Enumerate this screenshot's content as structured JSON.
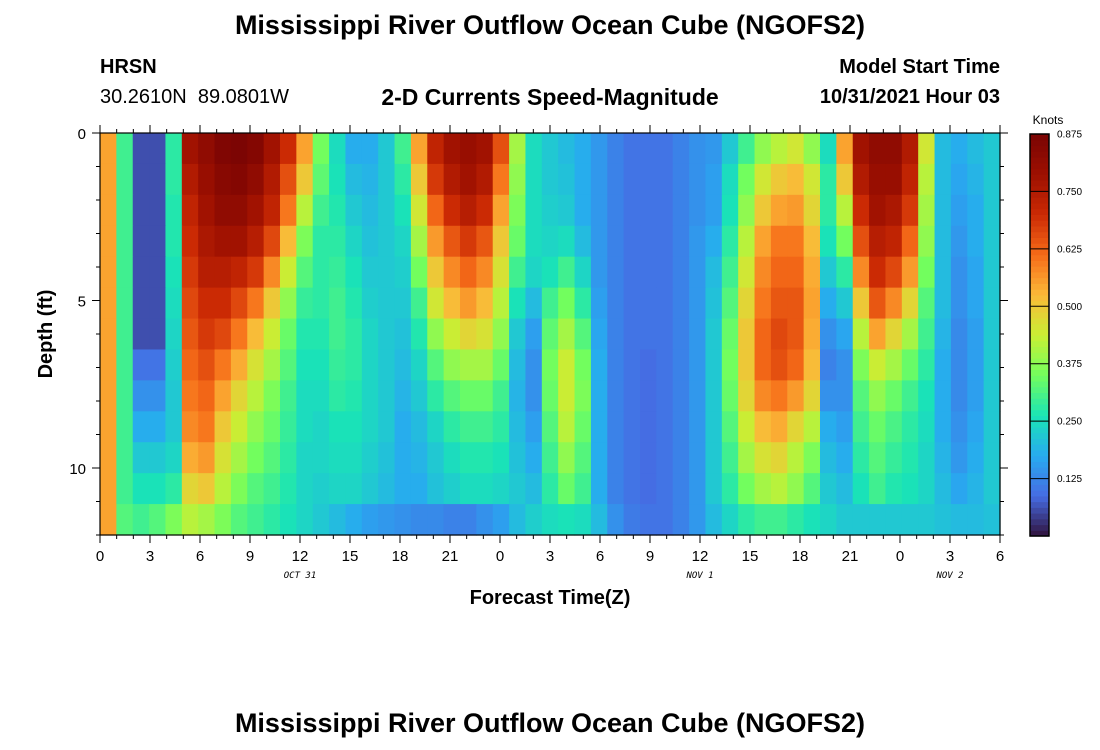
{
  "header": {
    "title": "Mississippi River Outflow Ocean Cube (NGOFS2)",
    "station_name": "HRSN",
    "coordinates": "30.2610N  89.0801W",
    "subtitle": "2-D Currents Speed-Magnitude",
    "model_start_label": "Model Start Time",
    "model_start_value": "10/31/2021 Hour 03"
  },
  "footer": {
    "title": "Mississippi River Outflow Ocean Cube (NGOFS2)"
  },
  "chart_data": {
    "type": "heatmap",
    "xlabel": "Forecast Time(Z)",
    "ylabel": "Depth (ft)",
    "x_tick_labels": [
      "0",
      "3",
      "6",
      "9",
      "12",
      "15",
      "18",
      "21",
      "0",
      "3",
      "6",
      "9",
      "12",
      "15",
      "18",
      "21",
      "0",
      "3",
      "6"
    ],
    "x_range_hours": [
      0,
      54
    ],
    "date_labels": [
      {
        "text": "OCT 31",
        "hour": 12
      },
      {
        "text": "NOV 1",
        "hour": 36
      },
      {
        "text": "NOV 2",
        "hour": 51
      }
    ],
    "y_tick_labels": [
      "0",
      "5",
      "10"
    ],
    "y_range_ft": [
      0,
      12
    ],
    "colorbar": {
      "title": "Knots",
      "min": 0,
      "max": 0.875,
      "tick_labels": [
        "0.875",
        "0.750",
        "0.625",
        "0.500",
        "0.375",
        "0.250",
        "0.125"
      ],
      "tick_values": [
        0.875,
        0.75,
        0.625,
        0.5,
        0.375,
        0.25,
        0.125
      ]
    },
    "column_hours": [
      0,
      1,
      2,
      3,
      4,
      5,
      6,
      7,
      8,
      9,
      10,
      11,
      12,
      13,
      14,
      15,
      16,
      17,
      18,
      19,
      20,
      21,
      22,
      23,
      24,
      25,
      26,
      27,
      28,
      29,
      30,
      31,
      32,
      33,
      34,
      35,
      36,
      37,
      38,
      39,
      40,
      41,
      42,
      43,
      44,
      45,
      46,
      47,
      48,
      49,
      50,
      51,
      52,
      53,
      54
    ],
    "layer_depths_ft": [
      0,
      1,
      2,
      3,
      4,
      5,
      6,
      7,
      8,
      9,
      10,
      11,
      12
    ],
    "speed_knots_by_depth": [
      [
        0.55,
        0.3,
        0.06,
        0.06,
        0.28,
        0.78,
        0.82,
        0.86,
        0.87,
        0.85,
        0.78,
        0.7,
        0.55,
        0.35,
        0.25,
        0.18,
        0.18,
        0.22,
        0.3,
        0.55,
        0.72,
        0.78,
        0.8,
        0.78,
        0.65,
        0.4,
        0.25,
        0.22,
        0.2,
        0.18,
        0.15,
        0.12,
        0.1,
        0.1,
        0.1,
        0.12,
        0.14,
        0.15,
        0.22,
        0.3,
        0.38,
        0.42,
        0.45,
        0.38,
        0.25,
        0.55,
        0.78,
        0.82,
        0.82,
        0.75,
        0.45,
        0.2,
        0.18,
        0.2,
        0.22
      ],
      [
        0.55,
        0.3,
        0.06,
        0.06,
        0.28,
        0.75,
        0.8,
        0.84,
        0.85,
        0.82,
        0.75,
        0.65,
        0.5,
        0.33,
        0.26,
        0.2,
        0.19,
        0.22,
        0.28,
        0.5,
        0.68,
        0.75,
        0.78,
        0.75,
        0.6,
        0.38,
        0.25,
        0.22,
        0.21,
        0.18,
        0.15,
        0.12,
        0.1,
        0.1,
        0.1,
        0.12,
        0.14,
        0.16,
        0.25,
        0.35,
        0.45,
        0.5,
        0.52,
        0.45,
        0.28,
        0.5,
        0.75,
        0.8,
        0.8,
        0.72,
        0.42,
        0.2,
        0.17,
        0.19,
        0.22
      ],
      [
        0.55,
        0.3,
        0.06,
        0.06,
        0.27,
        0.72,
        0.78,
        0.82,
        0.82,
        0.78,
        0.72,
        0.6,
        0.42,
        0.3,
        0.27,
        0.22,
        0.2,
        0.22,
        0.26,
        0.45,
        0.62,
        0.7,
        0.74,
        0.7,
        0.55,
        0.36,
        0.25,
        0.23,
        0.22,
        0.18,
        0.15,
        0.12,
        0.1,
        0.1,
        0.1,
        0.12,
        0.14,
        0.16,
        0.26,
        0.38,
        0.5,
        0.55,
        0.56,
        0.48,
        0.28,
        0.42,
        0.7,
        0.78,
        0.76,
        0.68,
        0.4,
        0.2,
        0.16,
        0.18,
        0.22
      ],
      [
        0.55,
        0.3,
        0.06,
        0.06,
        0.27,
        0.7,
        0.76,
        0.78,
        0.78,
        0.74,
        0.66,
        0.52,
        0.36,
        0.28,
        0.28,
        0.24,
        0.21,
        0.22,
        0.24,
        0.4,
        0.56,
        0.64,
        0.68,
        0.64,
        0.5,
        0.34,
        0.25,
        0.24,
        0.25,
        0.2,
        0.15,
        0.12,
        0.1,
        0.1,
        0.1,
        0.12,
        0.15,
        0.18,
        0.28,
        0.42,
        0.55,
        0.6,
        0.6,
        0.52,
        0.26,
        0.35,
        0.65,
        0.74,
        0.72,
        0.62,
        0.38,
        0.2,
        0.15,
        0.18,
        0.22
      ],
      [
        0.55,
        0.3,
        0.06,
        0.06,
        0.26,
        0.68,
        0.74,
        0.74,
        0.72,
        0.68,
        0.58,
        0.44,
        0.32,
        0.28,
        0.29,
        0.26,
        0.22,
        0.22,
        0.23,
        0.35,
        0.5,
        0.58,
        0.62,
        0.58,
        0.46,
        0.3,
        0.24,
        0.26,
        0.3,
        0.24,
        0.15,
        0.12,
        0.1,
        0.1,
        0.1,
        0.12,
        0.15,
        0.2,
        0.3,
        0.45,
        0.58,
        0.62,
        0.62,
        0.54,
        0.22,
        0.28,
        0.58,
        0.7,
        0.66,
        0.56,
        0.35,
        0.2,
        0.14,
        0.17,
        0.22
      ],
      [
        0.55,
        0.3,
        0.06,
        0.06,
        0.25,
        0.66,
        0.7,
        0.7,
        0.66,
        0.6,
        0.5,
        0.38,
        0.29,
        0.28,
        0.3,
        0.27,
        0.23,
        0.22,
        0.22,
        0.3,
        0.45,
        0.52,
        0.56,
        0.52,
        0.42,
        0.26,
        0.2,
        0.3,
        0.35,
        0.28,
        0.16,
        0.12,
        0.1,
        0.1,
        0.1,
        0.12,
        0.15,
        0.21,
        0.32,
        0.48,
        0.6,
        0.64,
        0.64,
        0.55,
        0.18,
        0.22,
        0.5,
        0.64,
        0.58,
        0.48,
        0.32,
        0.2,
        0.14,
        0.17,
        0.22
      ],
      [
        0.55,
        0.3,
        0.06,
        0.06,
        0.24,
        0.64,
        0.68,
        0.66,
        0.6,
        0.52,
        0.44,
        0.34,
        0.27,
        0.27,
        0.3,
        0.28,
        0.24,
        0.22,
        0.21,
        0.27,
        0.38,
        0.44,
        0.48,
        0.46,
        0.38,
        0.22,
        0.16,
        0.33,
        0.4,
        0.32,
        0.17,
        0.12,
        0.1,
        0.1,
        0.1,
        0.12,
        0.15,
        0.22,
        0.34,
        0.5,
        0.62,
        0.66,
        0.64,
        0.54,
        0.14,
        0.17,
        0.42,
        0.55,
        0.48,
        0.4,
        0.3,
        0.19,
        0.13,
        0.16,
        0.22
      ],
      [
        0.55,
        0.3,
        0.1,
        0.1,
        0.23,
        0.62,
        0.65,
        0.6,
        0.54,
        0.46,
        0.4,
        0.32,
        0.26,
        0.26,
        0.29,
        0.28,
        0.24,
        0.22,
        0.2,
        0.24,
        0.32,
        0.38,
        0.4,
        0.4,
        0.34,
        0.2,
        0.14,
        0.35,
        0.44,
        0.35,
        0.18,
        0.12,
        0.1,
        0.09,
        0.1,
        0.12,
        0.15,
        0.22,
        0.35,
        0.5,
        0.62,
        0.65,
        0.62,
        0.52,
        0.12,
        0.14,
        0.36,
        0.44,
        0.4,
        0.34,
        0.28,
        0.18,
        0.13,
        0.16,
        0.22
      ],
      [
        0.55,
        0.3,
        0.14,
        0.14,
        0.22,
        0.6,
        0.62,
        0.55,
        0.48,
        0.42,
        0.36,
        0.3,
        0.25,
        0.25,
        0.28,
        0.27,
        0.24,
        0.22,
        0.19,
        0.22,
        0.28,
        0.32,
        0.34,
        0.34,
        0.3,
        0.19,
        0.14,
        0.34,
        0.44,
        0.36,
        0.18,
        0.12,
        0.1,
        0.09,
        0.1,
        0.12,
        0.15,
        0.22,
        0.34,
        0.48,
        0.58,
        0.6,
        0.56,
        0.48,
        0.14,
        0.14,
        0.32,
        0.38,
        0.34,
        0.3,
        0.26,
        0.18,
        0.13,
        0.16,
        0.22
      ],
      [
        0.55,
        0.3,
        0.18,
        0.18,
        0.22,
        0.58,
        0.6,
        0.5,
        0.44,
        0.38,
        0.34,
        0.29,
        0.25,
        0.24,
        0.26,
        0.26,
        0.24,
        0.22,
        0.18,
        0.2,
        0.24,
        0.28,
        0.3,
        0.3,
        0.28,
        0.2,
        0.16,
        0.32,
        0.42,
        0.34,
        0.18,
        0.12,
        0.1,
        0.09,
        0.1,
        0.12,
        0.15,
        0.22,
        0.32,
        0.44,
        0.52,
        0.54,
        0.48,
        0.42,
        0.18,
        0.16,
        0.3,
        0.34,
        0.31,
        0.28,
        0.25,
        0.18,
        0.14,
        0.17,
        0.22
      ],
      [
        0.55,
        0.3,
        0.22,
        0.22,
        0.24,
        0.54,
        0.56,
        0.46,
        0.4,
        0.35,
        0.32,
        0.28,
        0.24,
        0.24,
        0.25,
        0.25,
        0.23,
        0.21,
        0.18,
        0.19,
        0.22,
        0.25,
        0.27,
        0.27,
        0.26,
        0.21,
        0.18,
        0.3,
        0.38,
        0.32,
        0.18,
        0.12,
        0.1,
        0.09,
        0.1,
        0.12,
        0.15,
        0.22,
        0.3,
        0.4,
        0.46,
        0.48,
        0.42,
        0.36,
        0.2,
        0.18,
        0.28,
        0.32,
        0.29,
        0.27,
        0.24,
        0.19,
        0.15,
        0.18,
        0.22
      ],
      [
        0.55,
        0.3,
        0.26,
        0.26,
        0.28,
        0.48,
        0.5,
        0.42,
        0.36,
        0.32,
        0.3,
        0.27,
        0.24,
        0.23,
        0.24,
        0.24,
        0.22,
        0.2,
        0.18,
        0.18,
        0.21,
        0.23,
        0.25,
        0.25,
        0.24,
        0.22,
        0.2,
        0.28,
        0.34,
        0.3,
        0.18,
        0.12,
        0.1,
        0.09,
        0.1,
        0.12,
        0.15,
        0.22,
        0.28,
        0.35,
        0.4,
        0.42,
        0.38,
        0.32,
        0.22,
        0.2,
        0.26,
        0.3,
        0.27,
        0.26,
        0.24,
        0.2,
        0.17,
        0.19,
        0.22
      ],
      [
        0.55,
        0.32,
        0.3,
        0.32,
        0.36,
        0.42,
        0.4,
        0.36,
        0.32,
        0.3,
        0.28,
        0.26,
        0.24,
        0.22,
        0.2,
        0.18,
        0.16,
        0.15,
        0.14,
        0.13,
        0.13,
        0.12,
        0.12,
        0.14,
        0.16,
        0.2,
        0.23,
        0.25,
        0.26,
        0.25,
        0.2,
        0.14,
        0.11,
        0.1,
        0.1,
        0.12,
        0.15,
        0.2,
        0.24,
        0.28,
        0.3,
        0.3,
        0.28,
        0.26,
        0.24,
        0.22,
        0.22,
        0.22,
        0.22,
        0.22,
        0.22,
        0.21,
        0.2,
        0.2,
        0.21
      ]
    ]
  }
}
